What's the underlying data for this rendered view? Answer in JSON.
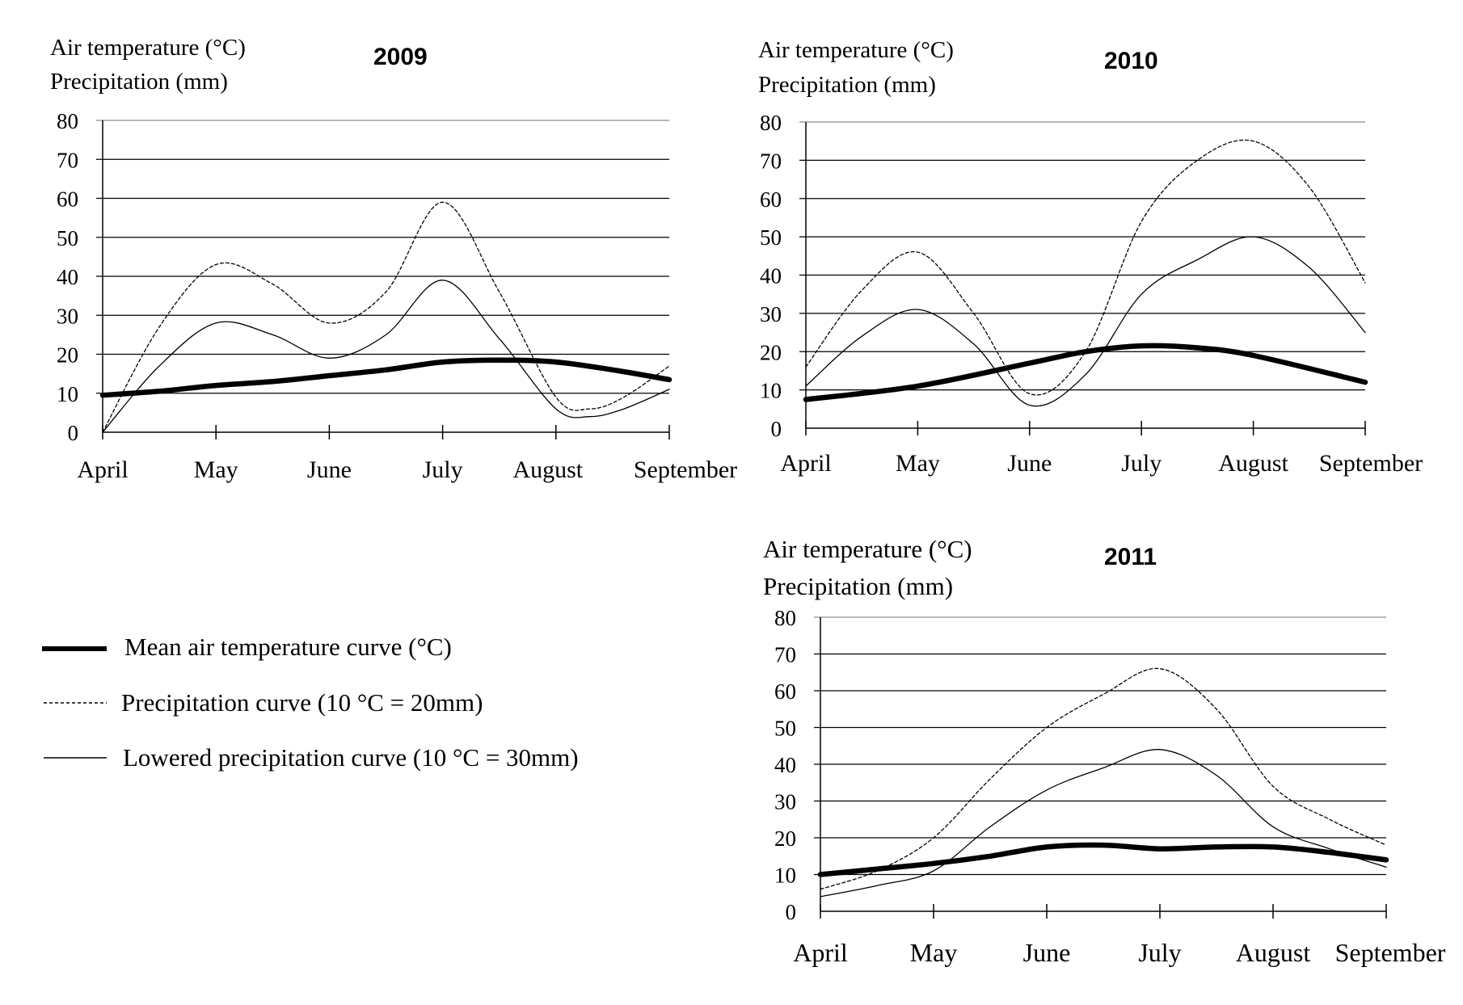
{
  "legend": {
    "items": [
      {
        "label": "Mean air temperature curve (°C)",
        "style": "mean"
      },
      {
        "label": "Precipitation curve (10 °C = 20mm)",
        "style": "precip"
      },
      {
        "label": "Lowered precipitation curve (10 °C = 30mm)",
        "style": "lowered"
      }
    ]
  },
  "chart_data": [
    {
      "type": "line",
      "title": "2009",
      "ylabel_lines": [
        "Air temperature  (°C)",
        "Precipitation (mm)"
      ],
      "categories": [
        "April",
        "May",
        "June",
        "July",
        "August",
        "September"
      ],
      "ylim": [
        0,
        80
      ],
      "yticks": [
        0,
        10,
        20,
        30,
        40,
        50,
        60,
        70,
        80
      ],
      "grid": true,
      "series": [
        {
          "name": "Mean air temperature curve (°C)",
          "style": "mean",
          "x": [
            0,
            0.5,
            1,
            1.5,
            2,
            2.5,
            3,
            3.5,
            4,
            4.5,
            5
          ],
          "y": [
            9.5,
            10.5,
            12,
            13,
            14.5,
            16,
            18,
            18.5,
            18,
            16,
            13.5
          ]
        },
        {
          "name": "Precipitation curve (10 °C = 20mm)",
          "style": "precip",
          "x": [
            0,
            0.5,
            1,
            1.5,
            2,
            2.5,
            3,
            3.5,
            4,
            4.3,
            4.6,
            5
          ],
          "y": [
            0,
            27,
            43,
            38,
            28,
            36,
            59,
            36,
            9,
            6,
            9,
            17
          ]
        },
        {
          "name": "Lowered precipitation curve (10 °C = 30mm)",
          "style": "lowered",
          "x": [
            0,
            0.5,
            1,
            1.5,
            2,
            2.5,
            3,
            3.5,
            4,
            4.3,
            4.6,
            5
          ],
          "y": [
            0,
            17,
            28,
            25,
            19,
            25,
            39,
            24,
            6,
            4,
            6,
            11
          ]
        }
      ]
    },
    {
      "type": "line",
      "title": "2010",
      "ylabel_lines": [
        "Air temperature  (°C)",
        "Precipitation (mm)"
      ],
      "categories": [
        "April",
        "May",
        "June",
        "July",
        "August",
        "September"
      ],
      "ylim": [
        0,
        80
      ],
      "yticks": [
        0,
        10,
        20,
        30,
        40,
        50,
        60,
        70,
        80
      ],
      "grid": true,
      "series": [
        {
          "name": "Mean air temperature curve (°C)",
          "style": "mean",
          "x": [
            0,
            1,
            2,
            2.5,
            3,
            3.5,
            4,
            5
          ],
          "y": [
            7.5,
            11,
            17,
            20,
            21.5,
            21,
            19,
            12
          ]
        },
        {
          "name": "Precipitation curve (10 °C = 20mm)",
          "style": "precip",
          "x": [
            0,
            0.5,
            1,
            1.5,
            2,
            2.5,
            3,
            3.5,
            4,
            4.5,
            5
          ],
          "y": [
            16,
            36,
            46,
            30,
            9,
            20,
            54,
            70,
            75,
            63,
            38
          ]
        },
        {
          "name": "Lowered precipitation curve (10 °C = 30mm)",
          "style": "lowered",
          "x": [
            0,
            0.5,
            1,
            1.5,
            2,
            2.5,
            3,
            3.5,
            4,
            4.5,
            5
          ],
          "y": [
            11,
            24,
            31,
            22,
            6,
            14,
            35,
            44,
            50,
            42,
            25
          ]
        }
      ]
    },
    {
      "type": "line",
      "title": "2011",
      "ylabel_lines": [
        "Air temperature  (°C)",
        "Precipitation (mm)"
      ],
      "categories": [
        "April",
        "May",
        "June",
        "July",
        "August",
        "September"
      ],
      "ylim": [
        0,
        80
      ],
      "yticks": [
        0,
        10,
        20,
        30,
        40,
        50,
        60,
        70,
        80
      ],
      "grid": true,
      "series": [
        {
          "name": "Mean air temperature curve (°C)",
          "style": "mean",
          "x": [
            0,
            0.5,
            1,
            1.5,
            2,
            2.5,
            3,
            3.5,
            4,
            4.5,
            5
          ],
          "y": [
            10,
            11.5,
            13,
            15,
            17.5,
            18,
            17,
            17.5,
            17.5,
            16,
            14
          ]
        },
        {
          "name": "Precipitation curve (10 °C = 20mm)",
          "style": "precip",
          "x": [
            0,
            0.5,
            1,
            1.5,
            2,
            2.5,
            3,
            3.5,
            4,
            4.5,
            5
          ],
          "y": [
            6,
            11,
            20,
            36,
            50,
            59,
            66,
            55,
            34,
            25,
            18
          ]
        },
        {
          "name": "Lowered precipitation curve (10 °C = 30mm)",
          "style": "lowered",
          "x": [
            0,
            0.5,
            1,
            1.5,
            2,
            2.5,
            3,
            3.5,
            4,
            4.5,
            5
          ],
          "y": [
            4,
            7,
            11,
            23,
            33,
            39,
            44,
            37,
            23,
            17,
            12
          ]
        }
      ]
    }
  ]
}
